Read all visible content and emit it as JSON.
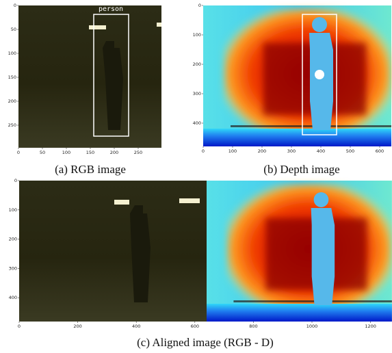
{
  "panels": [
    {
      "label": "person",
      "caption": "(a) RGB image",
      "xticks": [
        0,
        50,
        100,
        150,
        200,
        250
      ],
      "yticks": [
        0,
        50,
        100,
        150,
        200,
        250
      ]
    },
    {
      "caption": "(b) Depth image",
      "xticks": [
        0,
        100,
        200,
        300,
        400,
        500,
        600
      ],
      "yticks": [
        0,
        100,
        200,
        300,
        400
      ]
    },
    {
      "caption": "(c) Aligned image (RGB - D)",
      "xticks": [
        0,
        200,
        400,
        600,
        800,
        1000,
        1200
      ],
      "yticks": [
        0,
        100,
        200,
        300,
        400
      ]
    }
  ]
}
